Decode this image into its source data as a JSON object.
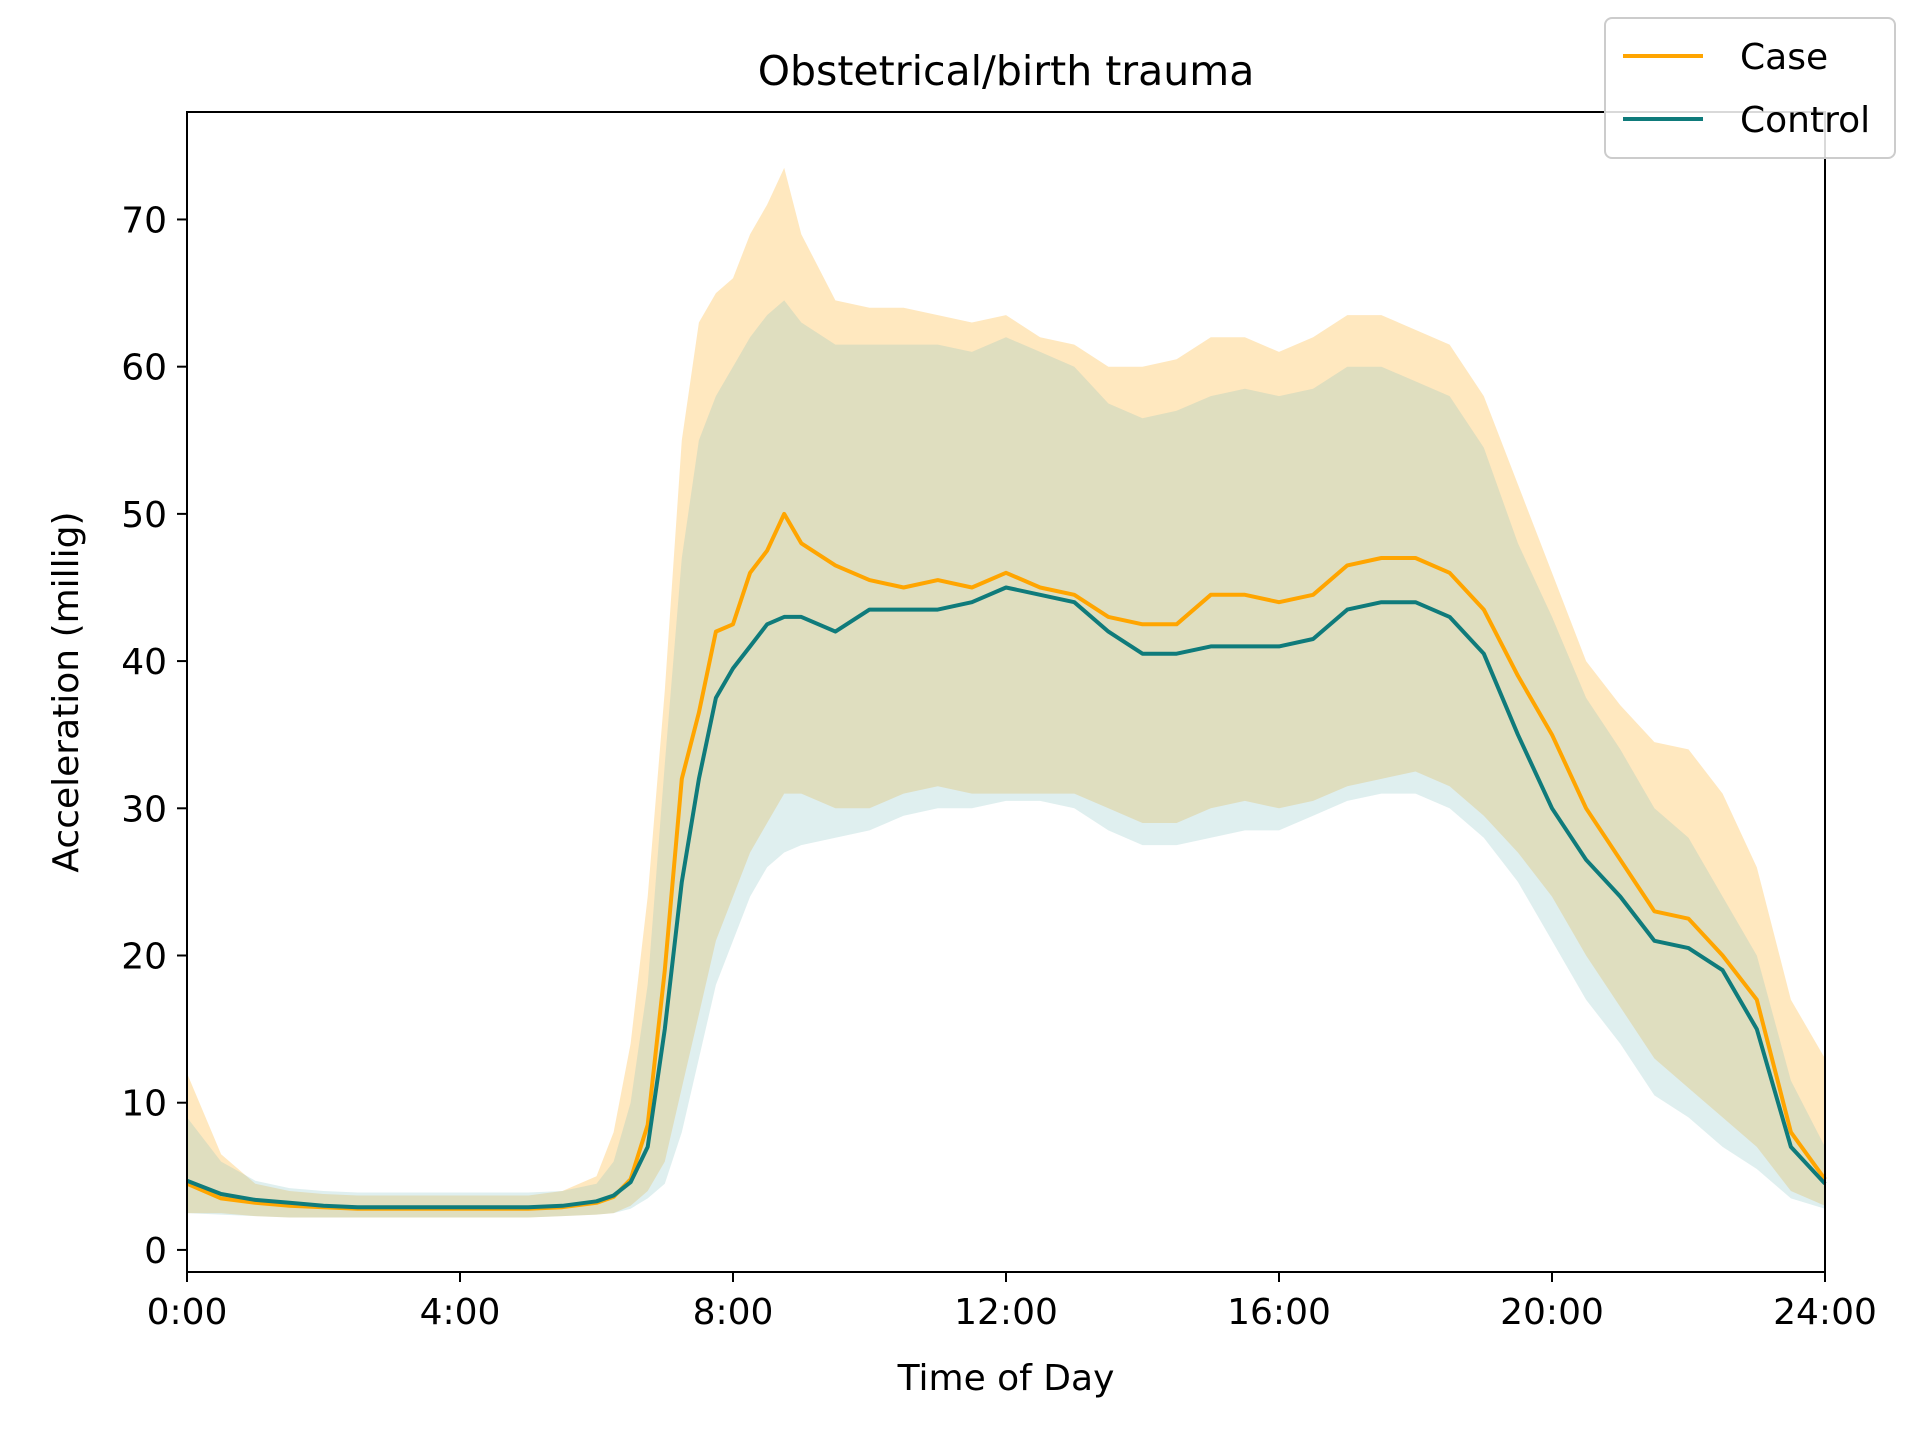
{
  "chart_data": {
    "type": "line",
    "title": "Obstetrical/birth trauma",
    "xlabel": "Time of Day",
    "ylabel": "Acceleration (millig)",
    "xlim": [
      0,
      24
    ],
    "ylim": [
      -1.5,
      77.3
    ],
    "x_ticks": [
      {
        "value": 0,
        "label": "0:00"
      },
      {
        "value": 4,
        "label": "4:00"
      },
      {
        "value": 8,
        "label": "8:00"
      },
      {
        "value": 12,
        "label": "12:00"
      },
      {
        "value": 16,
        "label": "16:00"
      },
      {
        "value": 20,
        "label": "20:00"
      },
      {
        "value": 24,
        "label": "24:00"
      }
    ],
    "y_ticks": [
      {
        "value": 0,
        "label": "0"
      },
      {
        "value": 10,
        "label": "10"
      },
      {
        "value": 20,
        "label": "20"
      },
      {
        "value": 30,
        "label": "30"
      },
      {
        "value": 40,
        "label": "40"
      },
      {
        "value": 50,
        "label": "50"
      },
      {
        "value": 60,
        "label": "60"
      },
      {
        "value": 70,
        "label": "70"
      }
    ],
    "grid": false,
    "legend_position": "top-right",
    "x": [
      0,
      0.5,
      1,
      1.5,
      2,
      2.5,
      3,
      3.5,
      4,
      4.5,
      5,
      5.5,
      6,
      6.25,
      6.5,
      6.75,
      7,
      7.25,
      7.5,
      7.75,
      8,
      8.25,
      8.5,
      8.75,
      9,
      9.5,
      10,
      10.5,
      11,
      11.5,
      12,
      12.5,
      13,
      13.5,
      14,
      14.5,
      15,
      15.5,
      16,
      16.5,
      17,
      17.5,
      18,
      18.5,
      19,
      19.5,
      20,
      20.5,
      21,
      21.5,
      22,
      22.5,
      23,
      23.5,
      24
    ],
    "series": [
      {
        "name": "Case",
        "color": "#ffa500",
        "band_color": "#ffa500",
        "values": [
          4.5,
          3.5,
          3.2,
          3.0,
          2.9,
          2.8,
          2.8,
          2.8,
          2.8,
          2.8,
          2.8,
          2.9,
          3.2,
          3.6,
          4.8,
          8.5,
          19.0,
          32.0,
          36.5,
          42.0,
          42.5,
          46.0,
          47.5,
          50.0,
          48.0,
          46.5,
          45.5,
          45.0,
          45.5,
          45.0,
          46.0,
          45.0,
          44.5,
          43.0,
          42.5,
          42.5,
          44.5,
          44.5,
          44.0,
          44.5,
          46.5,
          47.0,
          47.0,
          46.0,
          43.5,
          39.0,
          35.0,
          30.0,
          26.5,
          23.0,
          22.5,
          20.0,
          17.0,
          8.0,
          4.8
        ],
        "upper": [
          12.0,
          6.5,
          4.5,
          4.0,
          3.8,
          3.7,
          3.7,
          3.7,
          3.7,
          3.7,
          3.7,
          4.0,
          5.0,
          8.0,
          14.0,
          24.0,
          38.0,
          55.0,
          63.0,
          65.0,
          66.0,
          69.0,
          71.0,
          73.5,
          69.0,
          64.5,
          64.0,
          64.0,
          63.5,
          63.0,
          63.5,
          62.0,
          61.5,
          60.0,
          60.0,
          60.5,
          62.0,
          62.0,
          61.0,
          62.0,
          63.5,
          63.5,
          62.5,
          61.5,
          58.0,
          52.0,
          46.0,
          40.0,
          37.0,
          34.5,
          34.0,
          31.0,
          26.0,
          17.0,
          13.0
        ],
        "lower": [
          2.5,
          2.5,
          2.3,
          2.2,
          2.2,
          2.2,
          2.2,
          2.2,
          2.2,
          2.2,
          2.2,
          2.3,
          2.4,
          2.5,
          3.0,
          4.0,
          6.0,
          11.0,
          16.0,
          21.0,
          24.0,
          27.0,
          29.0,
          31.0,
          31.0,
          30.0,
          30.0,
          31.0,
          31.5,
          31.0,
          31.0,
          31.0,
          31.0,
          30.0,
          29.0,
          29.0,
          30.0,
          30.5,
          30.0,
          30.5,
          31.5,
          32.0,
          32.5,
          31.5,
          29.5,
          27.0,
          24.0,
          20.0,
          16.5,
          13.0,
          11.0,
          9.0,
          7.0,
          4.0,
          3.0
        ]
      },
      {
        "name": "Control",
        "color": "#0f7b7b",
        "band_color": "#7fbfbf",
        "values": [
          4.7,
          3.8,
          3.4,
          3.2,
          3.0,
          2.9,
          2.9,
          2.9,
          2.9,
          2.9,
          2.9,
          3.0,
          3.3,
          3.7,
          4.6,
          7.0,
          15.0,
          25.0,
          32.0,
          37.5,
          39.5,
          41.0,
          42.5,
          43.0,
          43.0,
          42.0,
          43.5,
          43.5,
          43.5,
          44.0,
          45.0,
          44.5,
          44.0,
          42.0,
          40.5,
          40.5,
          41.0,
          41.0,
          41.0,
          41.5,
          43.5,
          44.0,
          44.0,
          43.0,
          40.5,
          35.0,
          30.0,
          26.5,
          24.0,
          21.0,
          20.5,
          19.0,
          15.0,
          7.0,
          4.5
        ],
        "upper": [
          9.0,
          6.0,
          4.7,
          4.2,
          4.0,
          3.9,
          3.9,
          3.9,
          3.9,
          3.9,
          3.9,
          4.0,
          4.5,
          6.0,
          10.0,
          18.0,
          33.0,
          47.0,
          55.0,
          58.0,
          60.0,
          62.0,
          63.5,
          64.5,
          63.0,
          61.5,
          61.5,
          61.5,
          61.5,
          61.0,
          62.0,
          61.0,
          60.0,
          57.5,
          56.5,
          57.0,
          58.0,
          58.5,
          58.0,
          58.5,
          60.0,
          60.0,
          59.0,
          58.0,
          54.5,
          48.0,
          43.0,
          37.5,
          34.0,
          30.0,
          28.0,
          24.0,
          20.0,
          11.5,
          7.0
        ],
        "lower": [
          2.5,
          2.4,
          2.3,
          2.2,
          2.2,
          2.2,
          2.2,
          2.2,
          2.2,
          2.2,
          2.2,
          2.3,
          2.4,
          2.5,
          2.8,
          3.5,
          4.5,
          8.0,
          13.0,
          18.0,
          21.0,
          24.0,
          26.0,
          27.0,
          27.5,
          28.0,
          28.5,
          29.5,
          30.0,
          30.0,
          30.5,
          30.5,
          30.0,
          28.5,
          27.5,
          27.5,
          28.0,
          28.5,
          28.5,
          29.5,
          30.5,
          31.0,
          31.0,
          30.0,
          28.0,
          25.0,
          21.0,
          17.0,
          14.0,
          10.5,
          9.0,
          7.0,
          5.5,
          3.5,
          2.8
        ]
      }
    ]
  }
}
